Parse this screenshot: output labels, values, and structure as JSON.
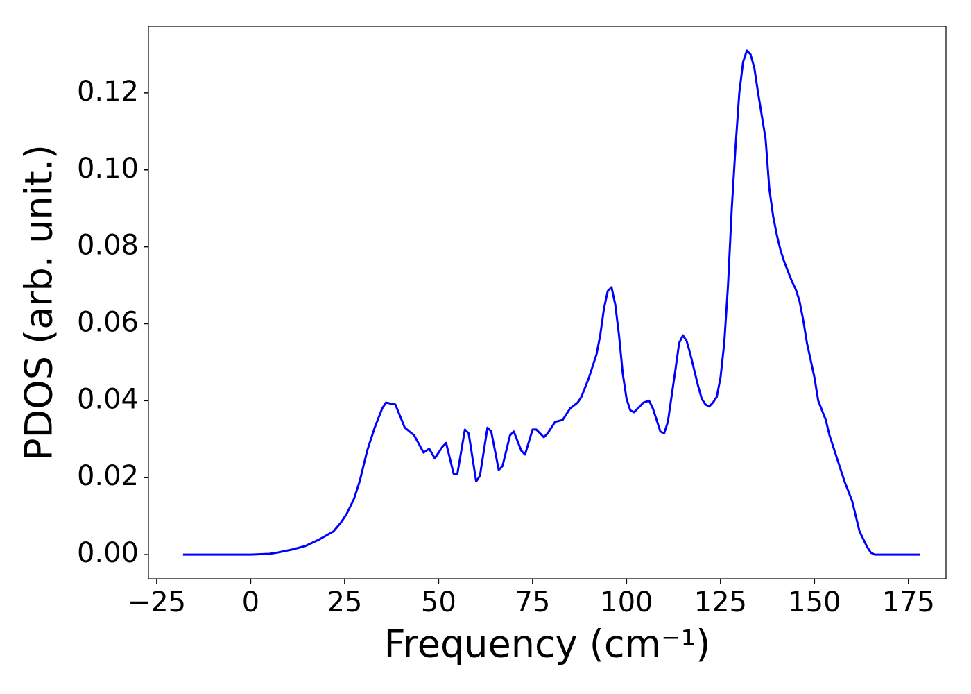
{
  "chart_data": {
    "type": "line",
    "xlabel": "Frequency (cm⁻¹)",
    "ylabel": "PDOS (arb. unit.)",
    "color": "#0000ff",
    "x": [
      -18,
      -10,
      0,
      5,
      7,
      11,
      14.5,
      18,
      22,
      24,
      25.5,
      27.5,
      29,
      31,
      33,
      35,
      36,
      38.5,
      41,
      43.5,
      46,
      47.5,
      49,
      51,
      52,
      54,
      55,
      57,
      58,
      60,
      61,
      63,
      64,
      66,
      67,
      69,
      70,
      72,
      73,
      75,
      76,
      78,
      79,
      81,
      83,
      85,
      87,
      88,
      90,
      91,
      92,
      93,
      94,
      95,
      96,
      97,
      98,
      99,
      100,
      101,
      102,
      103,
      104.5,
      106,
      107,
      109,
      110,
      111,
      113,
      114,
      115,
      116,
      117,
      119,
      120,
      121,
      122,
      123,
      124,
      125,
      126,
      127,
      128,
      129,
      130,
      131,
      132,
      133,
      134,
      135,
      137,
      138,
      139,
      140,
      141,
      142,
      143,
      144,
      145,
      146,
      147,
      148,
      150,
      151,
      153,
      154,
      156,
      158,
      160,
      161,
      162,
      164,
      165,
      166,
      178
    ],
    "values": [
      0,
      0,
      0,
      0.0002,
      0.0005,
      0.0013,
      0.0022,
      0.0038,
      0.006,
      0.0083,
      0.0105,
      0.0145,
      0.019,
      0.027,
      0.033,
      0.038,
      0.0395,
      0.039,
      0.033,
      0.031,
      0.0265,
      0.0275,
      0.025,
      0.028,
      0.029,
      0.021,
      0.021,
      0.0325,
      0.0315,
      0.019,
      0.0205,
      0.033,
      0.032,
      0.022,
      0.023,
      0.031,
      0.032,
      0.027,
      0.026,
      0.0325,
      0.0325,
      0.0305,
      0.0315,
      0.0345,
      0.035,
      0.038,
      0.0395,
      0.041,
      0.046,
      0.049,
      0.052,
      0.057,
      0.064,
      0.0685,
      0.0695,
      0.065,
      0.057,
      0.047,
      0.0405,
      0.0375,
      0.037,
      0.038,
      0.0395,
      0.04,
      0.038,
      0.032,
      0.0315,
      0.0345,
      0.048,
      0.055,
      0.057,
      0.0555,
      0.052,
      0.044,
      0.0405,
      0.039,
      0.0385,
      0.0395,
      0.041,
      0.046,
      0.055,
      0.07,
      0.09,
      0.106,
      0.12,
      0.128,
      0.131,
      0.13,
      0.1265,
      0.12,
      0.108,
      0.095,
      0.088,
      0.083,
      0.079,
      0.076,
      0.0735,
      0.071,
      0.069,
      0.066,
      0.061,
      0.055,
      0.046,
      0.04,
      0.035,
      0.031,
      0.025,
      0.019,
      0.014,
      0.01,
      0.006,
      0.002,
      0.0005,
      0,
      0
    ],
    "xlim": [
      -27.2,
      185
    ],
    "ylim": [
      -0.0063,
      0.1373
    ],
    "xticks": [
      {
        "value": -25,
        "label": "−25"
      },
      0,
      25,
      50,
      75,
      100,
      125,
      150,
      175
    ],
    "yticks": [
      {
        "value": 0,
        "label": "0.00"
      },
      {
        "value": 0.02,
        "label": "0.02"
      },
      {
        "value": 0.04,
        "label": "0.04"
      },
      {
        "value": 0.06,
        "label": "0.06"
      },
      {
        "value": 0.08,
        "label": "0.08"
      },
      {
        "value": 0.1,
        "label": "0.10"
      },
      {
        "value": 0.12,
        "label": "0.12"
      }
    ]
  }
}
